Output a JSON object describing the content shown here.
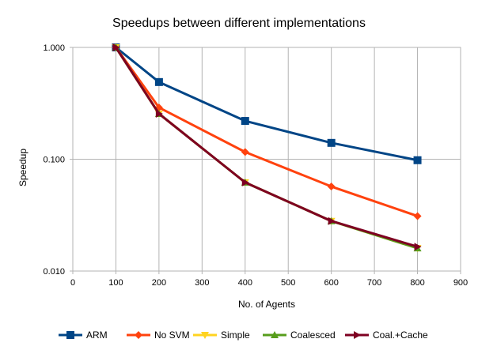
{
  "chart_data": {
    "type": "line",
    "title": "Speedups between different implementations",
    "xlabel": "No. of Agents",
    "ylabel": "Speedup",
    "xlim": [
      0,
      900
    ],
    "ylim": [
      0.01,
      1
    ],
    "y_scale": "log",
    "x_ticks": [
      0,
      100,
      200,
      300,
      400,
      500,
      600,
      700,
      800,
      900
    ],
    "x_tick_labels": [
      "0",
      "100",
      "200",
      "300",
      "400",
      "500",
      "600",
      "700",
      "800",
      "900"
    ],
    "y_ticks": [
      0.01,
      0.1,
      1
    ],
    "y_tick_labels": [
      "0.010",
      "0.100",
      "1.000"
    ],
    "grid": true,
    "legend_position": "bottom",
    "x": [
      100,
      200,
      400,
      600,
      800
    ],
    "series": [
      {
        "name": "ARM",
        "values": [
          1.0,
          0.49,
          0.22,
          0.14,
          0.098
        ],
        "color": "#004586",
        "marker": "square"
      },
      {
        "name": "No SVM",
        "values": [
          1.0,
          0.29,
          0.116,
          0.057,
          0.031
        ],
        "color": "#ff420e",
        "marker": "diamond"
      },
      {
        "name": "Simple",
        "values": [
          1.0,
          0.255,
          0.062,
          0.028,
          0.016
        ],
        "color": "#ffd320",
        "marker": "triangle-down"
      },
      {
        "name": "Coalesced",
        "values": [
          1.0,
          0.255,
          0.062,
          0.028,
          0.016
        ],
        "color": "#579d1c",
        "marker": "triangle-up"
      },
      {
        "name": "Coal.+Cache",
        "values": [
          1.0,
          0.255,
          0.062,
          0.028,
          0.0165
        ],
        "color": "#7e0021",
        "marker": "triangle-right"
      }
    ]
  }
}
